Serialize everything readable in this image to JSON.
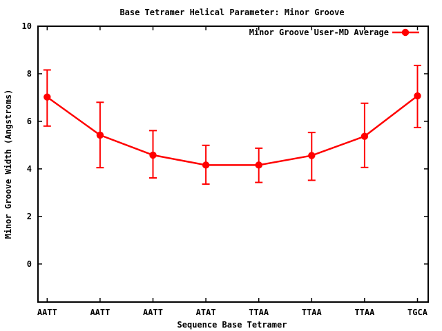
{
  "window": {
    "background": "#ffffff"
  },
  "chart_data": {
    "type": "line",
    "title": "Base Tetramer Helical Parameter: Minor Groove",
    "xlabel": "Sequence Base Tetramer",
    "ylabel": "Minor Groove Width (Angstroms)",
    "categories": [
      "AATT",
      "AATT",
      "AATT",
      "ATAT",
      "TTAA",
      "TTAA",
      "TTAA",
      "TGCA"
    ],
    "series": [
      {
        "name": "Minor Groove User-MD Average",
        "color": "#ff0000",
        "marker": "filled-circle",
        "error_bars": true,
        "values": [
          7.02,
          5.42,
          4.58,
          4.16,
          4.16,
          4.56,
          5.37,
          7.07
        ],
        "err_low": [
          5.8,
          4.05,
          3.62,
          3.36,
          3.43,
          3.52,
          4.06,
          5.74
        ],
        "err_high": [
          8.16,
          6.8,
          5.61,
          4.99,
          4.87,
          5.53,
          6.76,
          8.35
        ]
      }
    ],
    "y_ticks": [
      0,
      2,
      4,
      6,
      8,
      10
    ],
    "ylim": [
      -1.6,
      10
    ],
    "grid": false,
    "legend_position": "top-right-inside",
    "axis_color": "#000000",
    "background_color": "#ffffff"
  }
}
